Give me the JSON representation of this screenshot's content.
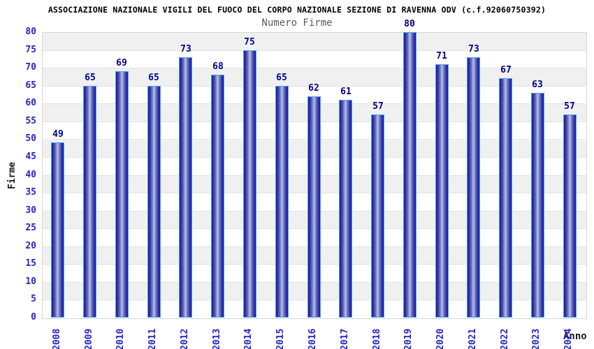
{
  "header": {
    "title": "ASSOCIAZIONE NAZIONALE VIGILI DEL FUOCO DEL CORPO NAZIONALE SEZIONE DI RAVENNA ODV (c.f.92060750392)",
    "subtitle": "Numero Firme"
  },
  "chart_data": {
    "type": "bar",
    "title": "Numero Firme",
    "xlabel": "Anno",
    "ylabel": "Firme",
    "categories": [
      "2008",
      "2009",
      "2010",
      "2011",
      "2012",
      "2013",
      "2014",
      "2015",
      "2016",
      "2017",
      "2018",
      "2019",
      "2020",
      "2021",
      "2022",
      "2023",
      "2024"
    ],
    "values": [
      49,
      65,
      69,
      65,
      73,
      68,
      75,
      65,
      62,
      61,
      57,
      80,
      71,
      73,
      67,
      63,
      57
    ],
    "ylim": [
      0,
      80
    ],
    "ytick_step": 5,
    "yticks": [
      0,
      5,
      10,
      15,
      20,
      25,
      30,
      35,
      40,
      45,
      50,
      55,
      60,
      65,
      70,
      75,
      80
    ],
    "legend": "none",
    "grid": "horizontal-bands",
    "colors": {
      "band_gray": "#f0f0f0",
      "band_white": "#ffffff",
      "gridline": "#e2e2e2",
      "plot_border": "#d6d6d6",
      "tick_label": "#2424cc",
      "value_label": "#000088",
      "bar_edge": "#1c1c94",
      "bar_mid": "#aeb6e0",
      "bar_border": "#4da3f2",
      "title": "#000000",
      "subtitle": "#5a5a5a",
      "axis_title": "#1a1a1a"
    }
  }
}
